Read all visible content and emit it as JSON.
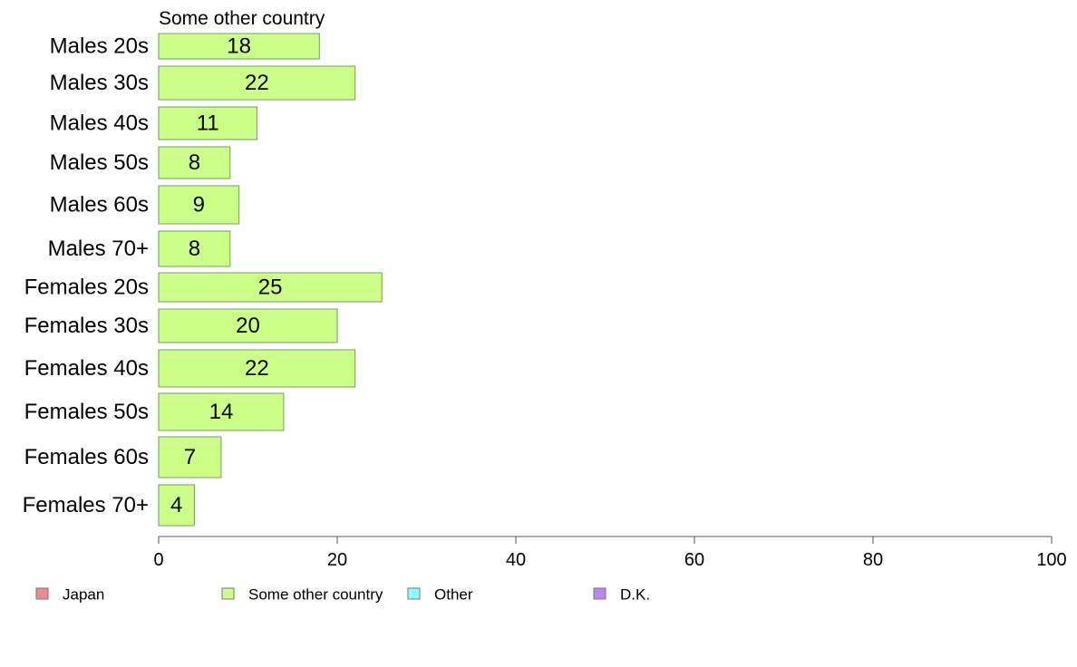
{
  "chart_data": {
    "type": "bar",
    "orientation": "horizontal",
    "panel_title": "Some other country",
    "categories": [
      "Males 20s",
      "Males 30s",
      "Males 40s",
      "Males 50s",
      "Males 60s",
      "Males 70+",
      "Females 20s",
      "Females 30s",
      "Females 40s",
      "Females 50s",
      "Females 60s",
      "Females 70+"
    ],
    "values": [
      18,
      22,
      11,
      8,
      9,
      8,
      25,
      20,
      22,
      14,
      7,
      4
    ],
    "value_labels": [
      "18",
      "22",
      "11",
      "8",
      "9",
      "8",
      "25",
      "20",
      "22",
      "14",
      "7",
      "4"
    ],
    "xlim": [
      0,
      100
    ],
    "x_ticks": [
      0,
      20,
      40,
      60,
      80,
      100
    ],
    "x_tick_labels": [
      "0",
      "20",
      "40",
      "60",
      "80",
      "100"
    ],
    "grid": false,
    "bar_color": "#ccff88",
    "bar_stroke": "#7a9a6a",
    "legend_position": "bottom",
    "legend": [
      {
        "label": "Japan",
        "color": "#f28b8b"
      },
      {
        "label": "Some other country",
        "color": "#ccff88"
      },
      {
        "label": "Other",
        "color": "#88ffff"
      },
      {
        "label": "D.K.",
        "color": "#bb88ee"
      }
    ]
  }
}
